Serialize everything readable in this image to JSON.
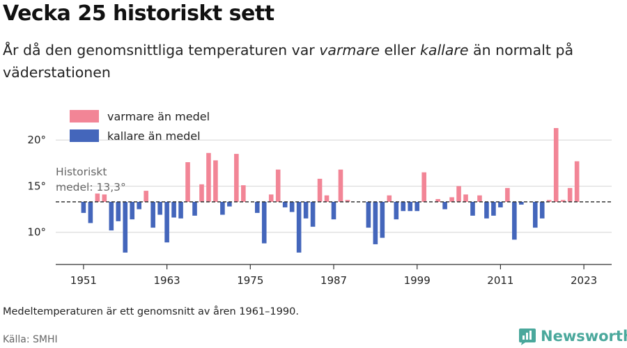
{
  "header": {
    "title": "Vecka 25 historiskt sett",
    "subtitle_1": "År då den genomsnittliga temperaturen var ",
    "subtitle_warm": "varmare",
    "subtitle_2": " eller ",
    "subtitle_cold": "kallare",
    "subtitle_3": " än normalt på väderstationen"
  },
  "footer": {
    "note": "Medeltemperaturen är ett genomsnitt av åren 1961–1990.",
    "source": "Källa: SMHI",
    "brand": "Newsworthy"
  },
  "chart_data": {
    "type": "bar",
    "baseline": 13.3,
    "baseline_label_1": "Historiskt",
    "baseline_label_2": "medel: 13,3°",
    "ylim": [
      7,
      23
    ],
    "y_ticks": [
      10,
      15,
      20
    ],
    "y_tick_labels": [
      "10°",
      "15°",
      "20°"
    ],
    "x_ticks": [
      1951,
      1963,
      1975,
      1987,
      1999,
      2011,
      2023
    ],
    "x_tick_labels": [
      "1951",
      "1963",
      "1975",
      "1987",
      "1999",
      "2011",
      "2023"
    ],
    "xlim": [
      1947,
      2027
    ],
    "legend": {
      "warm": "varmare än medel",
      "cold": "kallare än medel"
    },
    "colors": {
      "warm": "#f28596",
      "cold": "#4466bb",
      "baseline": "#333333",
      "grid": "#dddddd"
    },
    "years": [
      1950,
      1951,
      1952,
      1953,
      1954,
      1955,
      1956,
      1957,
      1958,
      1959,
      1960,
      1961,
      1962,
      1963,
      1964,
      1965,
      1966,
      1967,
      1968,
      1969,
      1970,
      1971,
      1972,
      1973,
      1974,
      1975,
      1976,
      1977,
      1978,
      1979,
      1980,
      1981,
      1982,
      1983,
      1984,
      1985,
      1986,
      1987,
      1988,
      1989,
      1990,
      1991,
      1992,
      1993,
      1994,
      1995,
      1996,
      1997,
      1998,
      1999,
      2000,
      2001,
      2002,
      2003,
      2004,
      2005,
      2006,
      2007,
      2008,
      2009,
      2010,
      2011,
      2012,
      2013,
      2014,
      2015,
      2016,
      2017,
      2018,
      2019,
      2020,
      2021,
      2022,
      2023
    ],
    "values": [
      13.3,
      12.1,
      11.0,
      14.2,
      14.1,
      10.2,
      11.2,
      7.8,
      11.4,
      12.5,
      14.5,
      10.5,
      11.9,
      8.9,
      11.6,
      11.5,
      17.6,
      11.8,
      15.2,
      18.6,
      17.8,
      11.9,
      12.8,
      18.5,
      15.1,
      13.3,
      12.1,
      8.8,
      14.1,
      16.8,
      12.7,
      12.2,
      7.8,
      11.5,
      10.6,
      15.8,
      14.0,
      11.4,
      16.8,
      13.5,
      13.3,
      13.3,
      10.5,
      8.7,
      9.4,
      14.0,
      11.4,
      12.3,
      12.3,
      12.3,
      16.5,
      13.3,
      13.6,
      12.5,
      13.8,
      15.0,
      14.1,
      11.8,
      14.0,
      11.5,
      11.8,
      12.7,
      14.8,
      9.2,
      13.0,
      13.3,
      10.5,
      11.5,
      13.5,
      21.3,
      13.5,
      14.8,
      17.7,
      13.3
    ]
  }
}
